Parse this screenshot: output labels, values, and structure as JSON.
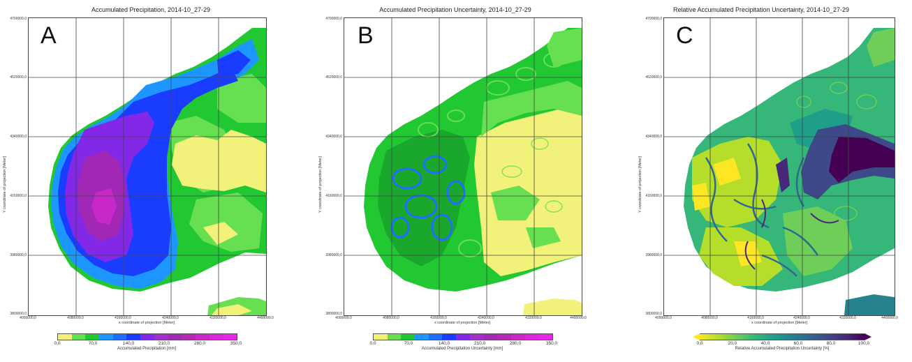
{
  "panels": [
    {
      "id": "A",
      "letter": "A",
      "title": "Accumulated Precipitation, 2014-10_27-29",
      "xlabel": "x coordinate of projection [Meter]",
      "ylabel": "Y coordinate of projection [Meter]",
      "yticks": [
        "4700000,0",
        "4520000,0",
        "4340000,0",
        "4160000,0",
        "3980000,0",
        "3800000,0"
      ],
      "xticks": [
        "4000000,0",
        "4080000,0",
        "4160000,0",
        "4240000,0",
        "4320000,0",
        "4400000,0"
      ],
      "colorbar_label": "Accumulated Precipitation [mm]",
      "colorbar_ticks": [
        "0,0",
        "70,0",
        "140,0",
        "210,0",
        "280,0",
        "350,0"
      ]
    },
    {
      "id": "B",
      "letter": "B",
      "title": "Accumulated Precipitation Uncertainty, 2014-10_27-29",
      "xlabel": "x coordinate of projection [Meter]",
      "ylabel": "Y coordinate of projection [Meter]",
      "yticks": [
        "4700000,0",
        "4520000,0",
        "4340000,0",
        "4160000,0",
        "3980000,0",
        "3800000,0"
      ],
      "xticks": [
        "4000000,0",
        "4080000,0",
        "4160000,0",
        "4240000,0",
        "4320000,0",
        "4400000,0"
      ],
      "colorbar_label": "Accumulated Precipitation Uncertainty [mm]",
      "colorbar_ticks": [
        "0,0",
        "70,0",
        "140,0",
        "210,0",
        "280,0",
        "350,0"
      ]
    },
    {
      "id": "C",
      "letter": "C",
      "title": "Relative Accumulated Precipitation Uncertainty, 2014-10_27-29",
      "xlabel": "x coordinate of projection [Meter]",
      "ylabel": "Y coordinate of projection [Meter]",
      "yticks": [
        "4700000,0",
        "4520000,0",
        "4340000,0",
        "4160000,0",
        "3980000,0",
        "3800000,0"
      ],
      "xticks": [
        "4000000,0",
        "4080000,0",
        "4160000,0",
        "4240000,0",
        "4320000,0",
        "4400000,0"
      ],
      "colorbar_label": "Relative Accumulated Precipitation Uncertainty [%]",
      "colorbar_ticks": [
        "0,0",
        "20,0",
        "40,0",
        "60,0",
        "80,0",
        "100,0"
      ]
    }
  ],
  "colors": {
    "discrete_scale": [
      "#f2f27a",
      "#66e050",
      "#22c832",
      "#1e96ff",
      "#1e6eff",
      "#1a3cff",
      "#8228e6",
      "#a030c8",
      "#a028b4",
      "#b428b4",
      "#c828c8",
      "#dc28dc",
      "#e628e6"
    ],
    "viridis_scale": [
      "#fde725",
      "#b5de2b",
      "#6ece58",
      "#35b779",
      "#1f9e89",
      "#26828e",
      "#31688e",
      "#3e4989",
      "#482878",
      "#440154"
    ],
    "gridline": "#444444"
  }
}
